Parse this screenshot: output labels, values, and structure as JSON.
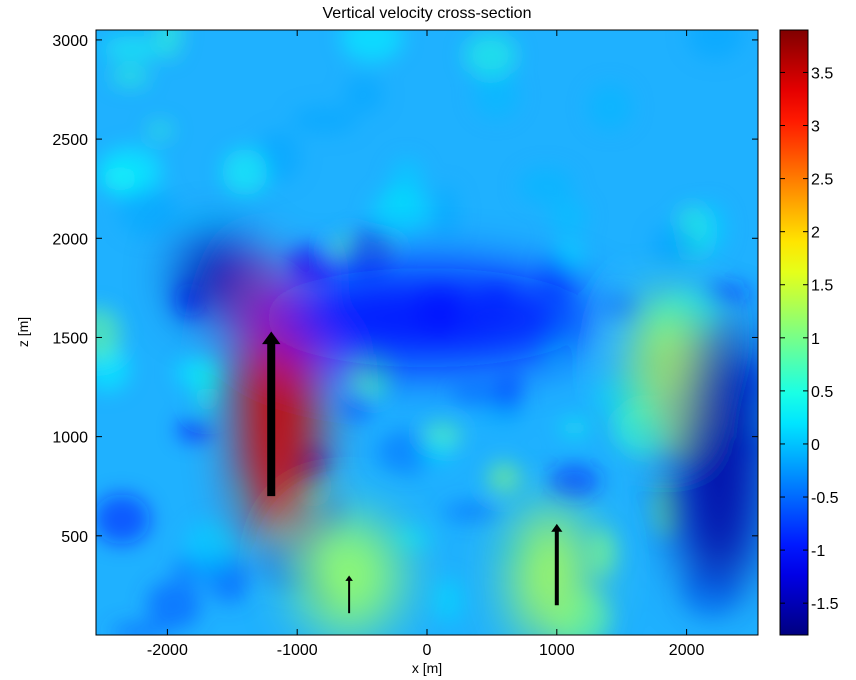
{
  "chart_data": {
    "type": "heatmap",
    "title": "Vertical velocity cross-section",
    "xlabel": "x [m]",
    "ylabel": "z [m]",
    "xlim": [
      -2550,
      2550
    ],
    "ylim": [
      0,
      3050
    ],
    "xticks": [
      -2000,
      -1000,
      0,
      1000,
      2000
    ],
    "xtick_labels": [
      "-2000",
      "-1000",
      "0",
      "1000",
      "2000"
    ],
    "yticks": [
      500,
      1000,
      1500,
      2000,
      2500,
      3000
    ],
    "ytick_labels": [
      "500",
      "1000",
      "1500",
      "2000",
      "2500",
      "3000"
    ],
    "colorbar": {
      "colormap": "jet",
      "range": [
        -1.8,
        3.9
      ],
      "ticks": [
        -1.5,
        -1,
        -0.5,
        0,
        0.5,
        1,
        1.5,
        2,
        2.5,
        3,
        3.5
      ],
      "tick_labels": [
        "-1.5",
        "-1",
        "-0.5",
        "0",
        "0.5",
        "1",
        "1.5",
        "2",
        "2.5",
        "3",
        "3.5"
      ]
    },
    "field_features": [
      {
        "feature": "updraft",
        "x_center": -1150,
        "z_center": 1150,
        "x_halfwidth": 300,
        "z_halfwidth": 700,
        "value": 3.2
      },
      {
        "feature": "updraft",
        "x_center": -600,
        "z_center": 300,
        "x_halfwidth": 400,
        "z_halfwidth": 300,
        "value": 1.2
      },
      {
        "feature": "updraft",
        "x_center": 950,
        "z_center": 300,
        "x_halfwidth": 300,
        "z_halfwidth": 350,
        "value": 1.3
      },
      {
        "feature": "updraft",
        "x_center": 1850,
        "z_center": 1350,
        "x_halfwidth": 250,
        "z_halfwidth": 350,
        "value": 1.4
      },
      {
        "feature": "downdraft",
        "x_center": -1600,
        "z_center": 1800,
        "x_halfwidth": 300,
        "z_halfwidth": 200,
        "value": -1.6
      },
      {
        "feature": "downdraft",
        "x_center": 2250,
        "z_center": 900,
        "x_halfwidth": 350,
        "z_halfwidth": 700,
        "value": -1.6
      },
      {
        "feature": "downdraft",
        "x_center": 0,
        "z_center": 1600,
        "x_halfwidth": 1300,
        "z_halfwidth": 250,
        "value": -1.0
      }
    ],
    "arrows": [
      {
        "x": -1200,
        "z_start": 700,
        "z_end": 1530,
        "width": "thick"
      },
      {
        "x": -600,
        "z_start": 110,
        "z_end": 300,
        "width": "thin"
      },
      {
        "x": 1000,
        "z_start": 150,
        "z_end": 560,
        "width": "medium"
      }
    ]
  }
}
